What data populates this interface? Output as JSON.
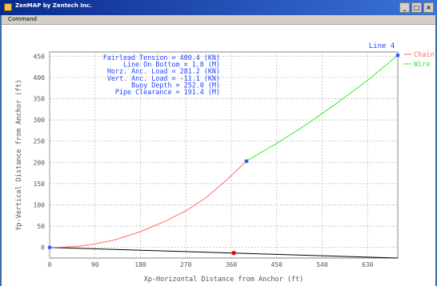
{
  "window": {
    "title": "ZenMAP by Zentech Inc.",
    "menu": [
      "Command"
    ],
    "controls": [
      "_",
      "□",
      "×"
    ]
  },
  "chart_data": {
    "type": "line",
    "title": "Line 4",
    "xlabel": "Xp-Horizontal Distance from Anchor (ft)",
    "ylabel": "Yp-Vertical Distance from Anchor (ft)",
    "xlim": [
      0,
      690
    ],
    "ylim": [
      -25,
      460
    ],
    "xticks": [
      0,
      90,
      180,
      270,
      360,
      450,
      540,
      630
    ],
    "yticks": [
      0,
      50,
      100,
      150,
      200,
      250,
      300,
      350,
      400,
      450
    ],
    "grid": true,
    "legend_position": "top-right",
    "colors": {
      "chain": "#ff6b6b",
      "wire": "#33ee33",
      "seabed": "#000000",
      "marker": "#2244ff",
      "buoy": "#e00000",
      "text": "#2244ff",
      "axes_text": "#555555"
    },
    "series": [
      {
        "name": "Chain",
        "points": [
          [
            0,
            0
          ],
          [
            30,
            1
          ],
          [
            60,
            3
          ],
          [
            90,
            8
          ],
          [
            130,
            18
          ],
          [
            180,
            37
          ],
          [
            230,
            62
          ],
          [
            270,
            86
          ],
          [
            310,
            117
          ],
          [
            350,
            158
          ],
          [
            390,
            203
          ]
        ]
      },
      {
        "name": "Wire",
        "points": [
          [
            390,
            203
          ],
          [
            450,
            245
          ],
          [
            510,
            290
          ],
          [
            570,
            340
          ],
          [
            630,
            393
          ],
          [
            690,
            452
          ]
        ]
      }
    ],
    "seabed": [
      [
        0,
        0
      ],
      [
        690,
        -25
      ]
    ],
    "markers": [
      {
        "x": 0,
        "y": 0,
        "kind": "node"
      },
      {
        "x": 390,
        "y": 203,
        "kind": "node"
      },
      {
        "x": 690,
        "y": 452,
        "kind": "node"
      },
      {
        "x": 365,
        "y": -13,
        "kind": "buoy"
      }
    ],
    "annotations": [
      "Fairlead Tension =  400.4 (KN)",
      "Line On Bottom =    1.8 (M)",
      "Horz. Anc. Load =  281.2 (KN)",
      "Vert. Anc. Load =  -11.1 (KN)",
      "Buoy Depth =  252.0 (M)",
      "Pipe Clearance =  191.4 (M)"
    ]
  }
}
